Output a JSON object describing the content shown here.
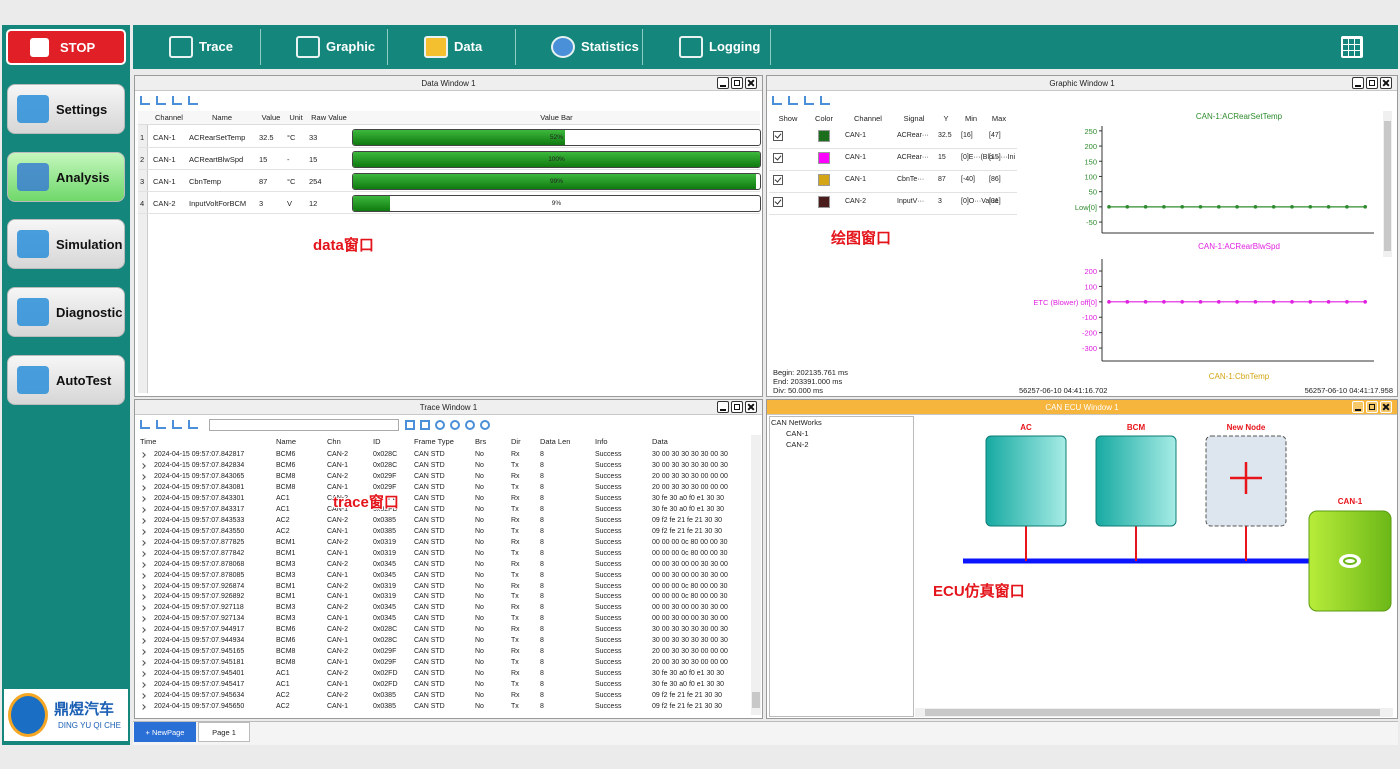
{
  "sidebar": {
    "stop": "STOP",
    "menu": [
      "Settings",
      "Analysis",
      "Simulation",
      "Diagnostic",
      "AutoTest"
    ],
    "logo_title": "鼎煜汽车",
    "logo_subtitle": "DING YU QI CHE"
  },
  "toolbar": {
    "tabs": [
      "Trace",
      "Graphic",
      "Data",
      "Statistics",
      "Logging"
    ]
  },
  "data_window": {
    "title": "Data Window 1",
    "annotation": "data窗口",
    "columns": [
      "Channel",
      "Name",
      "Value",
      "Unit",
      "Raw Value",
      "Value Bar"
    ],
    "rows": [
      [
        "1",
        "CAN-1",
        "ACRearSetTemp",
        "32.5",
        "°C",
        "33"
      ],
      [
        "2",
        "CAN-1",
        "ACReartBlwSpd",
        "15",
        "-",
        "15"
      ],
      [
        "3",
        "CAN-1",
        "CbnTemp",
        "87",
        "°C",
        "254"
      ],
      [
        "4",
        "CAN-2",
        "InputVoltForBCM",
        "3",
        "V",
        "12"
      ]
    ],
    "bars": [
      {
        "value": 52,
        "label": "52%"
      },
      {
        "value": 100,
        "label": "100%"
      },
      {
        "value": 99,
        "label": "99%"
      },
      {
        "value": 9,
        "label": "9%"
      }
    ]
  },
  "graphic_window": {
    "title": "Graphic Window 1",
    "annotation": "绘图窗口",
    "columns": [
      "Show",
      "Color",
      "Channel",
      "Signal",
      "Y",
      "Min",
      "Max"
    ],
    "rows": [
      {
        "color": "#1b6e1b",
        "cells": [
          "CAN-1",
          "ACRear···",
          "32.5",
          "[16]",
          "[47]"
        ]
      },
      {
        "color": "#ff00ff",
        "cells": [
          "CAN-1",
          "ACRear···",
          "15",
          "[0]E···(Blo···",
          "[15]···Ini"
        ]
      },
      {
        "color": "#d4a514",
        "cells": [
          "CAN-1",
          "CbnTe···",
          "87",
          "[-40]",
          "[86]"
        ]
      },
      {
        "color": "#4a1c1c",
        "cells": [
          "CAN-2",
          "InputV···",
          "3",
          "[0]O···Value",
          "[31]"
        ]
      }
    ],
    "footer": [
      "Begin: 202135.761 ms",
      "End: 203391.000 ms",
      "Div: 50.000 ms"
    ],
    "plots": [
      {
        "title": "CAN-1:ACRearSetTemp",
        "color": "#2e8b2e",
        "ylim": [
          -86,
          266
        ],
        "yticks": [
          250,
          200,
          150,
          100,
          50,
          {
            "value": 0,
            "label": "Low[0]"
          },
          -50
        ],
        "values": [
          0,
          0,
          0,
          0,
          0,
          0,
          0,
          0,
          0,
          0,
          0,
          0,
          0,
          0,
          0
        ]
      },
      {
        "title": "CAN-1:ACRearBlwSpd",
        "color": "#e020e0",
        "ylim": [
          -384,
          278
        ],
        "yticks": [
          200,
          100,
          {
            "value": 0,
            "label": "ETC (Blower) off[0]"
          },
          -100,
          -200,
          -300
        ],
        "values": [
          0,
          0,
          0,
          0,
          0,
          0,
          0,
          0,
          0,
          0,
          0,
          0,
          0,
          0,
          0
        ]
      },
      {
        "title": "CAN-1:CbnTemp",
        "color": "#d4a514"
      }
    ],
    "x_start": "56257-06-10 04:41:16.702",
    "x_end": "56257-06-10 04:41:17.958"
  },
  "trace_window": {
    "title": "Trace Window 1",
    "annotation": "trace窗口",
    "columns": [
      "Time",
      "Name",
      "Chn",
      "ID",
      "Frame Type",
      "Brs",
      "Dir",
      "Data Len",
      "Info",
      "Data"
    ],
    "rows": [
      [
        "2024-04-15 09:57:07.842817",
        "BCM6",
        "CAN-2",
        "0x028C",
        "CAN STD",
        "No",
        "Rx",
        "8",
        "Success",
        "30 00 30 30 30 30 00 30"
      ],
      [
        "2024-04-15 09:57:07.842834",
        "BCM6",
        "CAN-1",
        "0x028C",
        "CAN STD",
        "No",
        "Tx",
        "8",
        "Success",
        "30 00 30 30 30 30 00 30"
      ],
      [
        "2024-04-15 09:57:07.843065",
        "BCM8",
        "CAN-2",
        "0x029F",
        "CAN STD",
        "No",
        "Rx",
        "8",
        "Success",
        "20 00 30 30 30 00 00 00"
      ],
      [
        "2024-04-15 09:57:07.843081",
        "BCM8",
        "CAN-1",
        "0x029F",
        "CAN STD",
        "No",
        "Tx",
        "8",
        "Success",
        "20 00 30 30 30 00 00 00"
      ],
      [
        "2024-04-15 09:57:07.843301",
        "AC1",
        "CAN-2",
        "0x02FD",
        "CAN STD",
        "No",
        "Rx",
        "8",
        "Success",
        "30 fe 30 a0 f0 e1 30 30"
      ],
      [
        "2024-04-15 09:57:07.843317",
        "AC1",
        "CAN-1",
        "0x02FD",
        "CAN STD",
        "No",
        "Tx",
        "8",
        "Success",
        "30 fe 30 a0 f0 e1 30 30"
      ],
      [
        "2024-04-15 09:57:07.843533",
        "AC2",
        "CAN-2",
        "0x0385",
        "CAN STD",
        "No",
        "Rx",
        "8",
        "Success",
        "09 f2 fe 21 fe 21 30 30"
      ],
      [
        "2024-04-15 09:57:07.843550",
        "AC2",
        "CAN-1",
        "0x0385",
        "CAN STD",
        "No",
        "Tx",
        "8",
        "Success",
        "09 f2 fe 21 fe 21 30 30"
      ],
      [
        "2024-04-15 09:57:07.877825",
        "BCM1",
        "CAN-2",
        "0x0319",
        "CAN STD",
        "No",
        "Rx",
        "8",
        "Success",
        "00 00 00 0c 80 00 00 30"
      ],
      [
        "2024-04-15 09:57:07.877842",
        "BCM1",
        "CAN-1",
        "0x0319",
        "CAN STD",
        "No",
        "Tx",
        "8",
        "Success",
        "00 00 00 0c 80 00 00 30"
      ],
      [
        "2024-04-15 09:57:07.878068",
        "BCM3",
        "CAN-2",
        "0x0345",
        "CAN STD",
        "No",
        "Rx",
        "8",
        "Success",
        "00 00 30 00 00 30 30 00"
      ],
      [
        "2024-04-15 09:57:07.878085",
        "BCM3",
        "CAN-1",
        "0x0345",
        "CAN STD",
        "No",
        "Tx",
        "8",
        "Success",
        "00 00 30 00 00 30 30 00"
      ],
      [
        "2024-04-15 09:57:07.926874",
        "BCM1",
        "CAN-2",
        "0x0319",
        "CAN STD",
        "No",
        "Rx",
        "8",
        "Success",
        "00 00 00 0c 80 00 00 30"
      ],
      [
        "2024-04-15 09:57:07.926892",
        "BCM1",
        "CAN-1",
        "0x0319",
        "CAN STD",
        "No",
        "Tx",
        "8",
        "Success",
        "00 00 00 0c 80 00 00 30"
      ],
      [
        "2024-04-15 09:57:07.927118",
        "BCM3",
        "CAN-2",
        "0x0345",
        "CAN STD",
        "No",
        "Rx",
        "8",
        "Success",
        "00 00 30 00 00 30 30 00"
      ],
      [
        "2024-04-15 09:57:07.927134",
        "BCM3",
        "CAN-1",
        "0x0345",
        "CAN STD",
        "No",
        "Tx",
        "8",
        "Success",
        "00 00 30 00 00 30 30 00"
      ],
      [
        "2024-04-15 09:57:07.944917",
        "BCM6",
        "CAN-2",
        "0x028C",
        "CAN STD",
        "No",
        "Rx",
        "8",
        "Success",
        "30 00 30 30 30 30 00 30"
      ],
      [
        "2024-04-15 09:57:07.944934",
        "BCM6",
        "CAN-1",
        "0x028C",
        "CAN STD",
        "No",
        "Tx",
        "8",
        "Success",
        "30 00 30 30 30 30 00 30"
      ],
      [
        "2024-04-15 09:57:07.945165",
        "BCM8",
        "CAN-2",
        "0x029F",
        "CAN STD",
        "No",
        "Rx",
        "8",
        "Success",
        "20 00 30 30 30 00 00 00"
      ],
      [
        "2024-04-15 09:57:07.945181",
        "BCM8",
        "CAN-1",
        "0x029F",
        "CAN STD",
        "No",
        "Tx",
        "8",
        "Success",
        "20 00 30 30 30 00 00 00"
      ],
      [
        "2024-04-15 09:57:07.945401",
        "AC1",
        "CAN-2",
        "0x02FD",
        "CAN STD",
        "No",
        "Rx",
        "8",
        "Success",
        "30 fe 30 a0 f0 e1 30 30"
      ],
      [
        "2024-04-15 09:57:07.945417",
        "AC1",
        "CAN-1",
        "0x02FD",
        "CAN STD",
        "No",
        "Tx",
        "8",
        "Success",
        "30 fe 30 a0 f0 e1 30 30"
      ],
      [
        "2024-04-15 09:57:07.945634",
        "AC2",
        "CAN-2",
        "0x0385",
        "CAN STD",
        "No",
        "Rx",
        "8",
        "Success",
        "09 f2 fe 21 fe 21 30 30"
      ],
      [
        "2024-04-15 09:57:07.945650",
        "AC2",
        "CAN-1",
        "0x0385",
        "CAN STD",
        "No",
        "Tx",
        "8",
        "Success",
        "09 f2 fe 21 fe 21 30 30"
      ]
    ]
  },
  "ecu_window": {
    "title": "CAN ECU Window 1",
    "tree": [
      "CAN NetWorks",
      "CAN-1",
      "CAN-2"
    ],
    "nodes": [
      "AC",
      "BCM",
      "New Node"
    ],
    "bus": "CAN-1",
    "annotation": "ECU仿真窗口"
  },
  "page_tabs": [
    "+ NewPage",
    "Page 1"
  ]
}
